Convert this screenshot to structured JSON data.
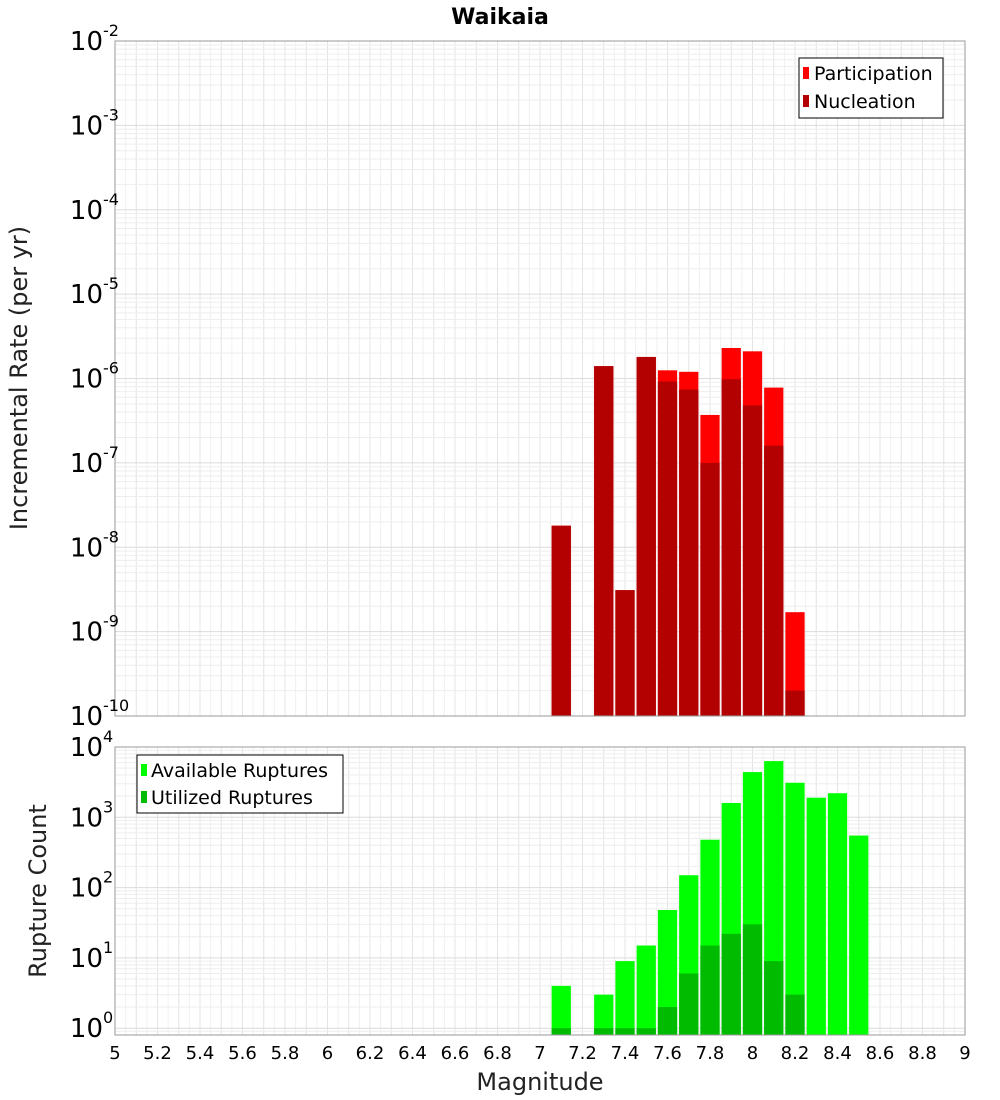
{
  "chart_data": [
    {
      "type": "bar",
      "title": "Waikaia",
      "xlabel": "Magnitude",
      "ylabel": "Incremental Rate (per yr)",
      "yscale": "log",
      "xlim": [
        5,
        9
      ],
      "ylim": [
        1e-10,
        0.01
      ],
      "ytick_exponents": [
        "-2",
        "-3",
        "-4",
        "-5",
        "-6",
        "-7",
        "-8",
        "-9",
        "-10"
      ],
      "legend_position": "top-right",
      "series": [
        {
          "name": "Participation",
          "color": "#ff0000",
          "x": [
            7.1,
            7.3,
            7.4,
            7.5,
            7.6,
            7.7,
            7.8,
            7.9,
            8.0,
            8.1,
            8.2
          ],
          "values": [
            1.8e-08,
            1.4e-06,
            3.1e-09,
            1.8e-06,
            1.25e-06,
            1.2e-06,
            3.7e-07,
            2.3e-06,
            2.1e-06,
            7.8e-07,
            1.7e-09
          ]
        },
        {
          "name": "Nucleation",
          "color": "#b30000",
          "x": [
            7.1,
            7.3,
            7.4,
            7.5,
            7.6,
            7.7,
            7.8,
            7.9,
            8.0,
            8.1,
            8.2
          ],
          "values": [
            1.8e-08,
            1.4e-06,
            3.1e-09,
            1.8e-06,
            9.2e-07,
            7.4e-07,
            1e-07,
            9.8e-07,
            4.8e-07,
            1.6e-07,
            2e-10
          ]
        }
      ]
    },
    {
      "type": "bar",
      "xlabel": "Magnitude",
      "ylabel": "Rupture Count",
      "yscale": "log",
      "xlim": [
        5,
        9
      ],
      "ylim": [
        0.8,
        10000
      ],
      "ytick_exponents": [
        "4",
        "3",
        "2",
        "1",
        "0"
      ],
      "legend_position": "top-left",
      "series": [
        {
          "name": "Available Ruptures",
          "color": "#00ff00",
          "x": [
            7.1,
            7.3,
            7.4,
            7.5,
            7.6,
            7.7,
            7.8,
            7.9,
            8.0,
            8.1,
            8.2,
            8.3,
            8.4,
            8.5
          ],
          "values": [
            4,
            3,
            9,
            15,
            48,
            150,
            480,
            1600,
            4400,
            6300,
            3100,
            1900,
            2200,
            550
          ]
        },
        {
          "name": "Utilized Ruptures",
          "color": "#00bb00",
          "x": [
            7.1,
            7.3,
            7.4,
            7.5,
            7.6,
            7.7,
            7.8,
            7.9,
            8.0,
            8.1,
            8.2
          ],
          "values": [
            1,
            1,
            1,
            1,
            2,
            6,
            15,
            22,
            30,
            9,
            3
          ]
        }
      ]
    }
  ],
  "x_ticks": [
    "5",
    "5.2",
    "5.4",
    "5.6",
    "5.8",
    "6",
    "6.2",
    "6.4",
    "6.6",
    "6.8",
    "7",
    "7.2",
    "7.4",
    "7.6",
    "7.8",
    "8",
    "8.2",
    "8.4",
    "8.6",
    "8.8",
    "9"
  ],
  "log_base_label": "10"
}
